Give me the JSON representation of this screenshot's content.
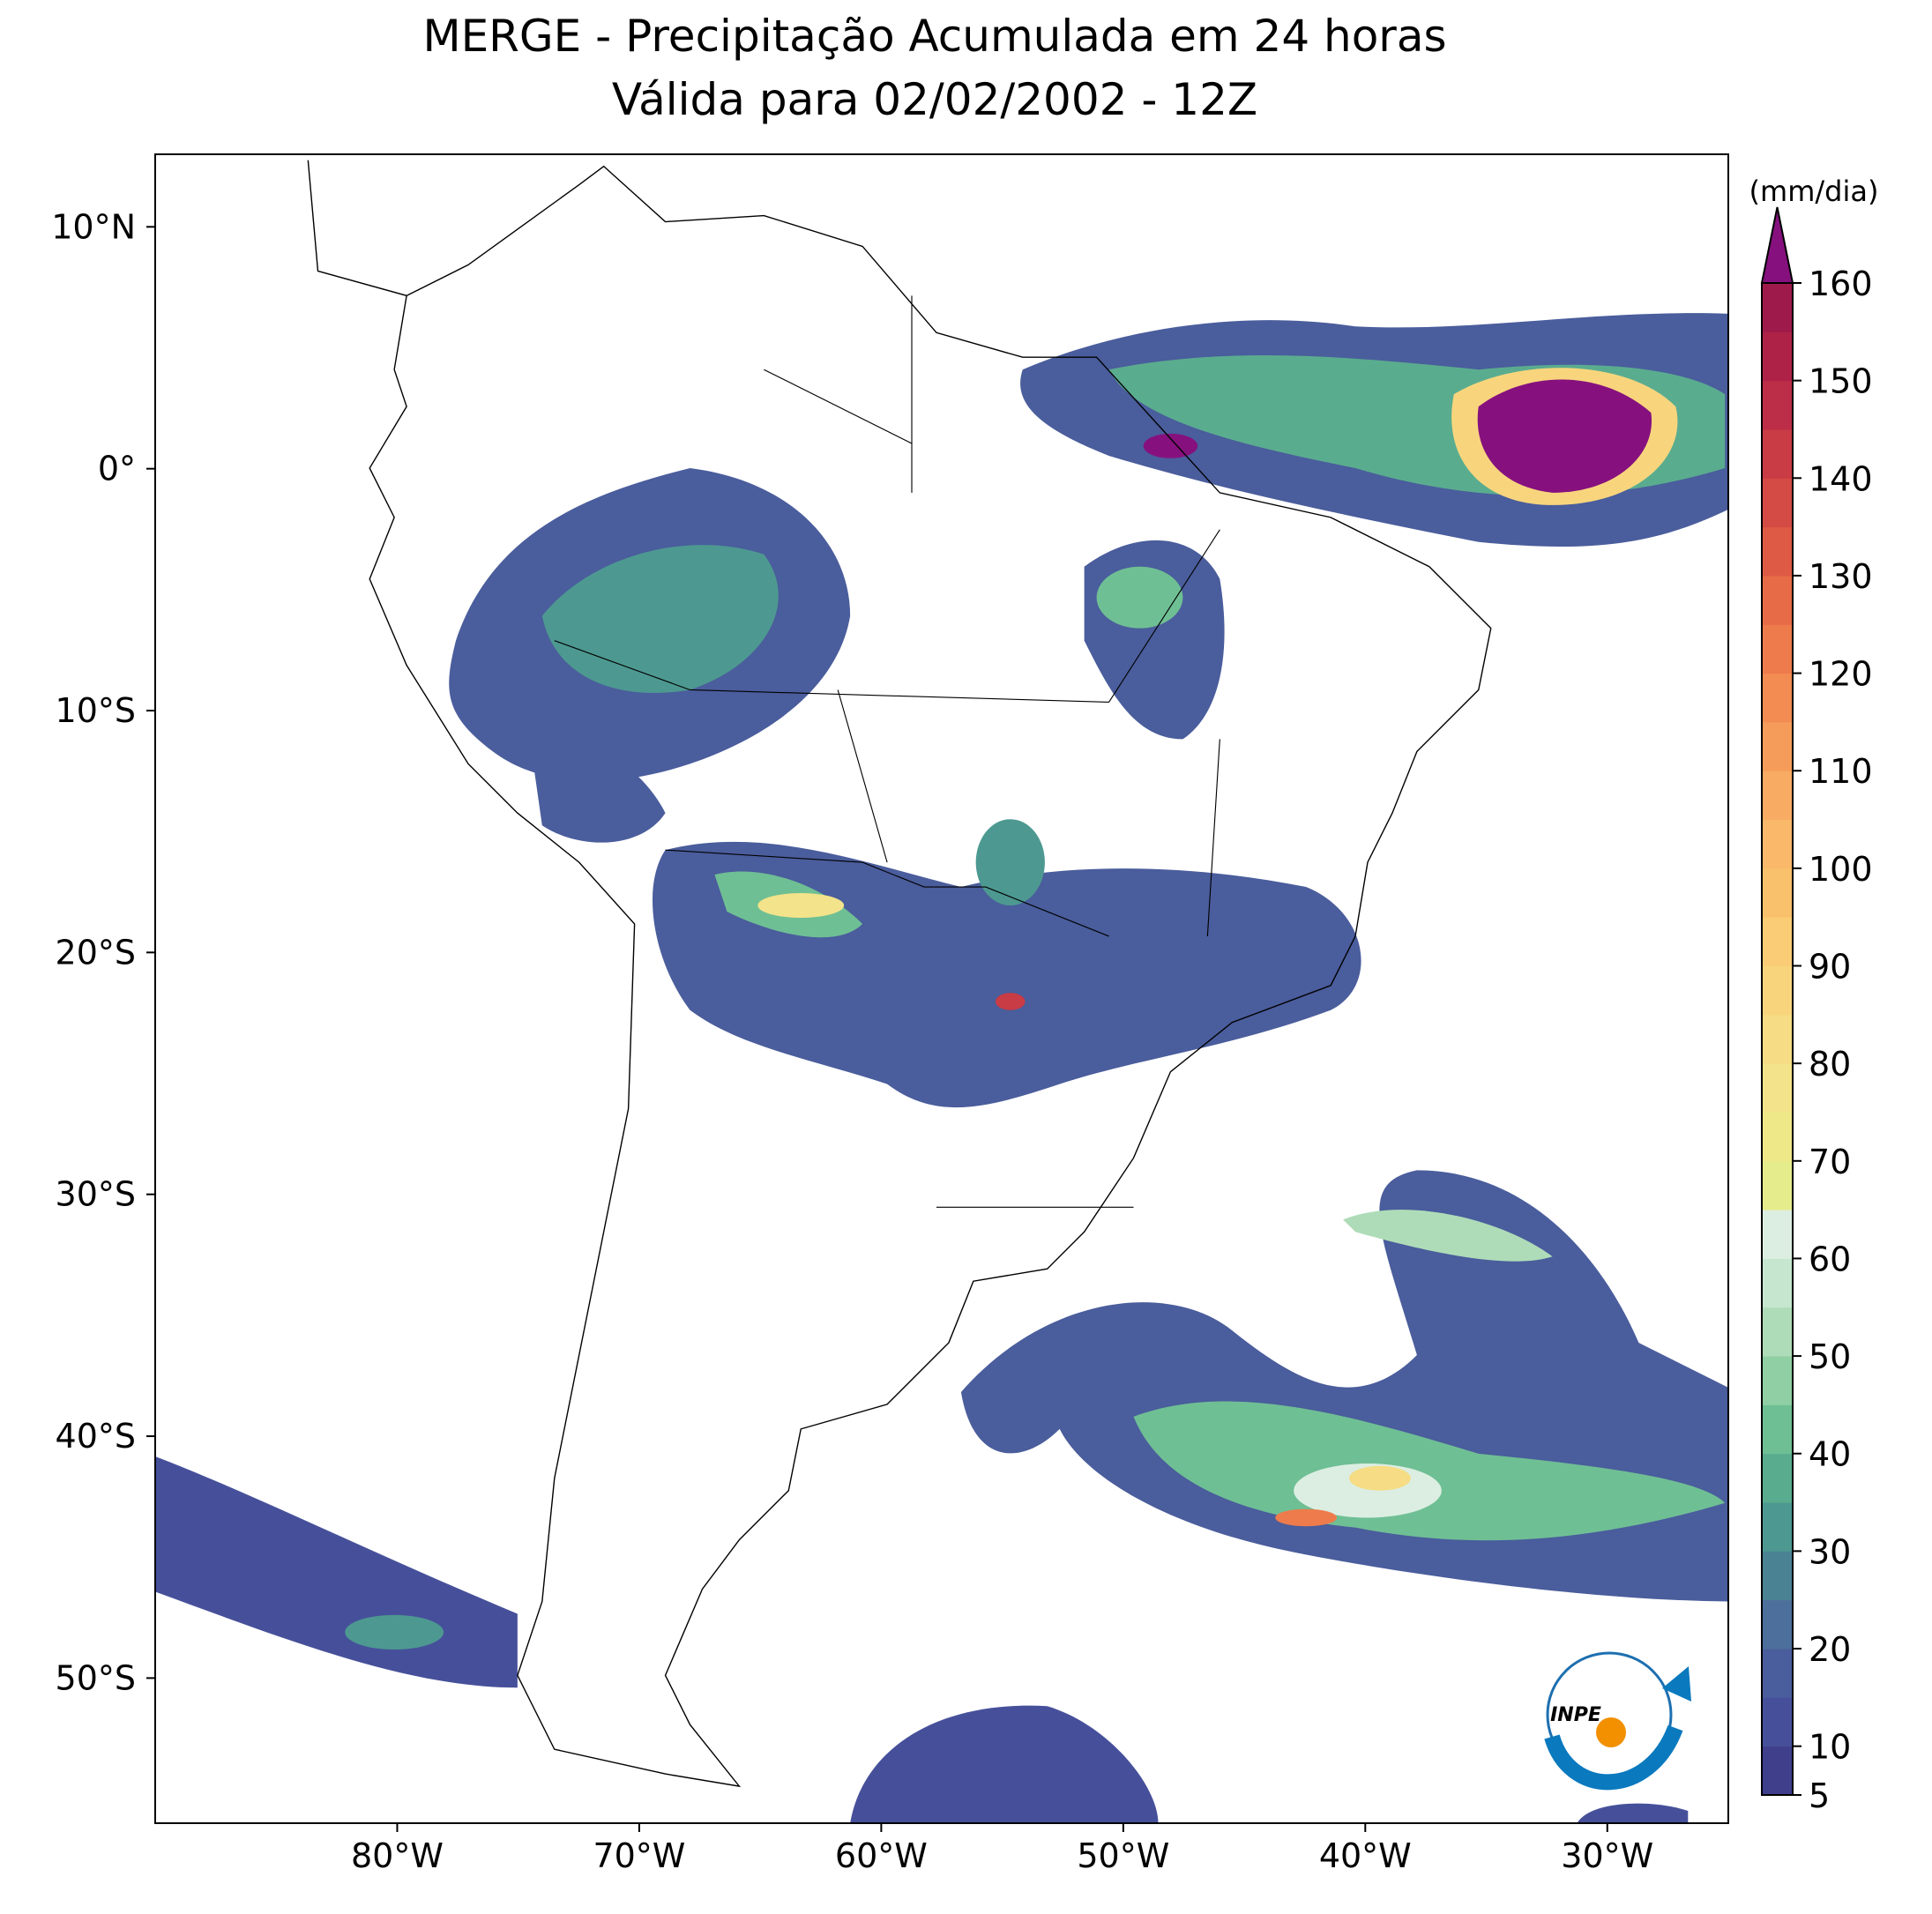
{
  "map": {
    "title": "MERGE - Precipitação Acumulada em 24 horas",
    "subtitle": "Válida para 02/02/2002 - 12Z",
    "xlim": [
      -90,
      -25
    ],
    "ylim": [
      -56,
      13
    ],
    "xticks": [
      {
        "value": -80,
        "label": "80°W"
      },
      {
        "value": -70,
        "label": "70°W"
      },
      {
        "value": -60,
        "label": "60°W"
      },
      {
        "value": -50,
        "label": "50°W"
      },
      {
        "value": -40,
        "label": "40°W"
      },
      {
        "value": -30,
        "label": "30°W"
      }
    ],
    "yticks": [
      {
        "value": 10,
        "label": "10°N"
      },
      {
        "value": 0,
        "label": "0°"
      },
      {
        "value": -10,
        "label": "10°S"
      },
      {
        "value": -20,
        "label": "20°S"
      },
      {
        "value": -30,
        "label": "30°S"
      },
      {
        "value": -40,
        "label": "40°S"
      },
      {
        "value": -50,
        "label": "50°S"
      }
    ],
    "colorbar": {
      "label": "(mm/dia)",
      "ticks": [
        5,
        10,
        20,
        30,
        40,
        50,
        60,
        70,
        80,
        90,
        100,
        110,
        120,
        130,
        140,
        150,
        160
      ],
      "colors": [
        "#3f3f8c",
        "#46509a",
        "#4a5d9c",
        "#4c6f9b",
        "#4a8294",
        "#4d9991",
        "#5aac8f",
        "#6fbf94",
        "#8fcfa3",
        "#aedcb8",
        "#c6e6cf",
        "#dceee2",
        "#e5ec8c",
        "#eee888",
        "#f3e38a",
        "#f6dc84",
        "#f8d57d",
        "#f9cc75",
        "#fac16c",
        "#f9b86a",
        "#f8ab63",
        "#f59c5a",
        "#f28c52",
        "#ee7b4c",
        "#e76b47",
        "#de5a45",
        "#d44a44",
        "#c93b45",
        "#bc2d47",
        "#ae2248",
        "#9e1a4a"
      ],
      "extend_color": "#86117e"
    },
    "logo_text": "INPE"
  }
}
